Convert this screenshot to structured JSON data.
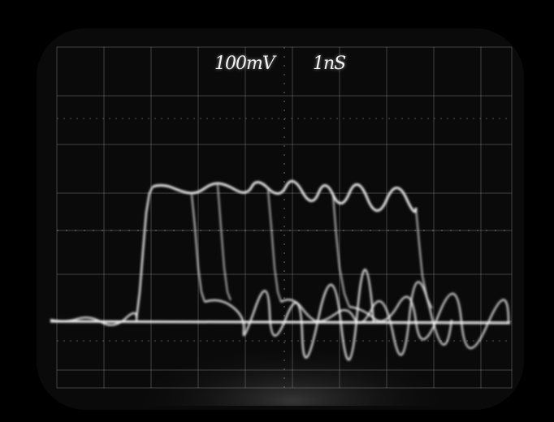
{
  "scope": {
    "volts_per_div": "100mV",
    "time_per_div": "1nS"
  },
  "colors": {
    "background": "#000000",
    "screen": "#0a0a0a",
    "graticule": "#8a8a8a",
    "trace": "#f4f4f4"
  }
}
